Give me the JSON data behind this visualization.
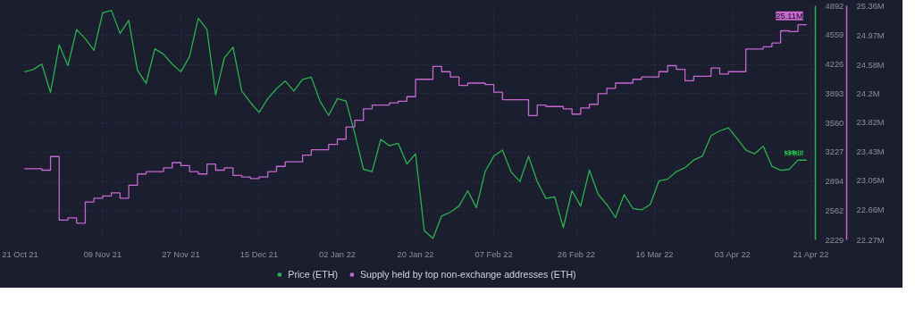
{
  "chart_data": {
    "type": "line",
    "xlabel": null,
    "x": [
      "2021-10-22",
      "2021-10-24",
      "2021-10-26",
      "2021-10-28",
      "2021-10-30",
      "2021-11-01",
      "2021-11-03",
      "2021-11-05",
      "2021-11-07",
      "2021-11-09",
      "2021-11-11",
      "2021-11-13",
      "2021-11-15",
      "2021-11-17",
      "2021-11-19",
      "2021-11-21",
      "2021-11-23",
      "2021-11-25",
      "2021-11-27",
      "2021-11-29",
      "2021-12-01",
      "2021-12-03",
      "2021-12-05",
      "2021-12-07",
      "2021-12-09",
      "2021-12-11",
      "2021-12-13",
      "2021-12-15",
      "2021-12-17",
      "2021-12-19",
      "2021-12-21",
      "2021-12-23",
      "2021-12-25",
      "2021-12-27",
      "2021-12-29",
      "2021-12-31",
      "2022-01-02",
      "2022-01-04",
      "2022-01-06",
      "2022-01-08",
      "2022-01-10",
      "2022-01-12",
      "2022-01-14",
      "2022-01-16",
      "2022-01-18",
      "2022-01-20",
      "2022-01-22",
      "2022-01-24",
      "2022-01-26",
      "2022-01-28",
      "2022-01-30",
      "2022-02-01",
      "2022-02-03",
      "2022-02-05",
      "2022-02-07",
      "2022-02-09",
      "2022-02-11",
      "2022-02-13",
      "2022-02-15",
      "2022-02-17",
      "2022-02-19",
      "2022-02-21",
      "2022-02-23",
      "2022-02-25",
      "2022-02-27",
      "2022-03-01",
      "2022-03-03",
      "2022-03-05",
      "2022-03-07",
      "2022-03-09",
      "2022-03-11",
      "2022-03-13",
      "2022-03-15",
      "2022-03-17",
      "2022-03-19",
      "2022-03-21",
      "2022-03-23",
      "2022-03-25",
      "2022-03-27",
      "2022-03-29",
      "2022-03-31",
      "2022-04-02",
      "2022-04-04",
      "2022-04-06",
      "2022-04-08",
      "2022-04-10",
      "2022-04-12",
      "2022-04-14",
      "2022-04-16",
      "2022-04-18",
      "2022-04-20"
    ],
    "series": [
      {
        "name": "Price (ETH)",
        "color": "#2bb24c",
        "values": [
          4141,
          4167,
          4229,
          3906,
          4447,
          4211,
          4621,
          4517,
          4386,
          4813,
          4840,
          4578,
          4726,
          4159,
          4010,
          4403,
          4342,
          4229,
          4141,
          4316,
          4752,
          4621,
          3879,
          4300,
          4421,
          3923,
          3792,
          3679,
          3836,
          3949,
          4037,
          3923,
          4054,
          4080,
          3809,
          3644,
          3836,
          3809,
          3443,
          3032,
          3006,
          3373,
          3300,
          3329,
          3093,
          3207,
          2334,
          2247,
          2500,
          2544,
          2614,
          2788,
          2596,
          3006,
          3181,
          3251,
          3000,
          2893,
          3181,
          2893,
          2700,
          2719,
          2369,
          2788,
          2614,
          3024,
          2750,
          2631,
          2483,
          2744,
          2587,
          2570,
          2631,
          2900,
          2919,
          3006,
          3050,
          3137,
          3181,
          3416,
          3469,
          3504,
          3382,
          3251,
          3207,
          3295,
          3067,
          3020,
          3032,
          3137,
          3136
        ],
        "value_labels": [
          null,
          null,
          null,
          null,
          null,
          null,
          null,
          null,
          null,
          null,
          null,
          null,
          null,
          null,
          null,
          null,
          null,
          null,
          null,
          null,
          null,
          null,
          null,
          null,
          null,
          null,
          null,
          null,
          null,
          null,
          null,
          null,
          null,
          null,
          null,
          null,
          null,
          null,
          null,
          null,
          null,
          null,
          null,
          null,
          null,
          null,
          null,
          null,
          null,
          null,
          null,
          null,
          null,
          null,
          null,
          null,
          null,
          null,
          null,
          null,
          null,
          null,
          null,
          null,
          null,
          null,
          null,
          null,
          null,
          null,
          null,
          null,
          null,
          null,
          null,
          null,
          null,
          null,
          null,
          null,
          null,
          null,
          null,
          null,
          null,
          null,
          null,
          null,
          null,
          null,
          "3136"
        ]
      },
      {
        "name": "Supply held by top non-exchange addresses (ETH)",
        "color": "#c767d1",
        "type": "step",
        "axis": "y2",
        "values": [
          23.21,
          23.21,
          23.19,
          23.37,
          22.53,
          22.56,
          22.49,
          22.77,
          22.82,
          22.85,
          22.89,
          22.82,
          22.99,
          23.14,
          23.17,
          23.17,
          23.22,
          23.29,
          23.25,
          23.17,
          23.14,
          23.27,
          23.19,
          23.22,
          23.12,
          23.1,
          23.08,
          23.1,
          23.17,
          23.24,
          23.3,
          23.3,
          23.39,
          23.46,
          23.46,
          23.53,
          23.6,
          23.76,
          23.85,
          24.0,
          24.05,
          24.05,
          24.08,
          24.1,
          24.16,
          24.39,
          24.39,
          24.56,
          24.49,
          24.42,
          24.31,
          24.34,
          24.34,
          24.32,
          24.22,
          24.12,
          24.12,
          24.12,
          23.91,
          24.05,
          24.03,
          24.03,
          24.0,
          23.93,
          24.01,
          24.06,
          24.2,
          24.27,
          24.34,
          24.34,
          24.39,
          24.42,
          24.42,
          24.49,
          24.57,
          24.52,
          24.37,
          24.43,
          24.43,
          24.54,
          24.46,
          24.49,
          24.49,
          24.79,
          24.79,
          24.82,
          24.87,
          25.03,
          25.02,
          25.11,
          25.11
        ],
        "value_labels": [
          null,
          null,
          null,
          null,
          null,
          null,
          null,
          null,
          null,
          null,
          null,
          null,
          null,
          null,
          null,
          null,
          null,
          null,
          null,
          null,
          null,
          null,
          null,
          null,
          null,
          null,
          null,
          null,
          null,
          null,
          null,
          null,
          null,
          null,
          null,
          null,
          null,
          null,
          null,
          null,
          null,
          null,
          null,
          null,
          null,
          null,
          null,
          null,
          null,
          null,
          null,
          null,
          null,
          null,
          null,
          null,
          null,
          null,
          null,
          null,
          null,
          null,
          null,
          null,
          null,
          null,
          null,
          null,
          null,
          null,
          null,
          null,
          null,
          null,
          null,
          null,
          null,
          null,
          null,
          null,
          null,
          null,
          null,
          null,
          null,
          null,
          null,
          null,
          null,
          null,
          "25.11M"
        ]
      }
    ],
    "xlim": [
      "2021-10-21",
      "2022-04-22"
    ],
    "xticks": [
      {
        "value": "2021-10-21",
        "label": "21 Oct 21"
      },
      {
        "value": "2021-11-09",
        "label": "09 Nov 21"
      },
      {
        "value": "2021-11-27",
        "label": "27 Nov 21"
      },
      {
        "value": "2021-12-15",
        "label": "15 Dec 21"
      },
      {
        "value": "2022-01-02",
        "label": "02 Jan 22"
      },
      {
        "value": "2022-01-20",
        "label": "20 Jan 22"
      },
      {
        "value": "2022-02-07",
        "label": "07 Feb 22"
      },
      {
        "value": "2022-02-26",
        "label": "26 Feb 22"
      },
      {
        "value": "2022-03-16",
        "label": "16 Mar 22"
      },
      {
        "value": "2022-04-03",
        "label": "03 Apr 22"
      },
      {
        "value": "2022-04-21",
        "label": "21 Apr 22"
      }
    ],
    "ylim": [
      2229,
      4892
    ],
    "yticks": [
      2229,
      2562,
      2894,
      3227,
      3560,
      3893,
      4226,
      4559,
      4892
    ],
    "y2lim": [
      22.27,
      25.36
    ],
    "y2ticks": [
      {
        "value": 22.27,
        "label": "22.27M"
      },
      {
        "value": 22.66,
        "label": "22.66M"
      },
      {
        "value": 23.05,
        "label": "23.05M"
      },
      {
        "value": 23.43,
        "label": "23.43M"
      },
      {
        "value": 23.82,
        "label": "23.82M"
      },
      {
        "value": 24.2,
        "label": "24.2M"
      },
      {
        "value": 24.58,
        "label": "24.58M"
      },
      {
        "value": 24.97,
        "label": "24.97M"
      },
      {
        "value": 25.36,
        "label": "25.36M"
      }
    ],
    "grid": true,
    "legend": "bottom",
    "marker": "none"
  }
}
